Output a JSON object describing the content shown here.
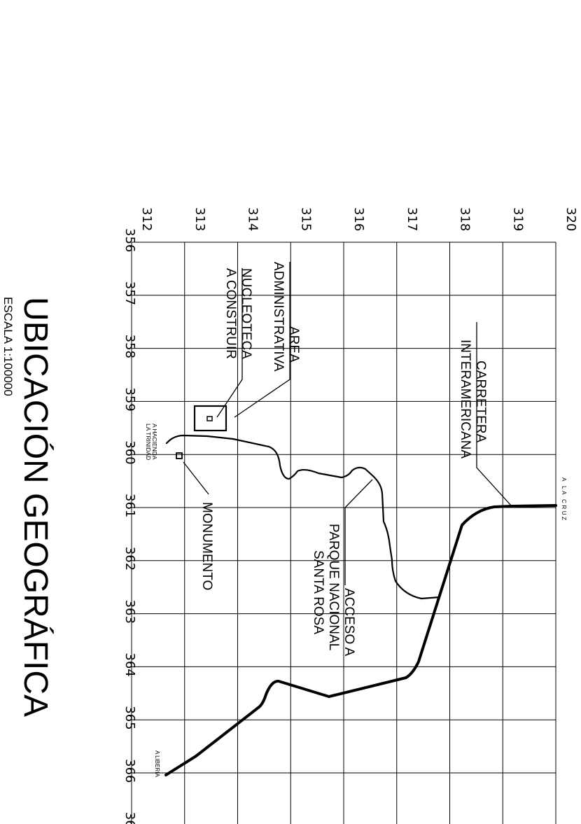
{
  "title": "UBICACIÓN GEOGRÁFICA",
  "scale": "ESCALA 1:100000",
  "grid": {
    "northing_labels": [
      "356",
      "357",
      "358",
      "359",
      "360",
      "361",
      "362",
      "363",
      "364",
      "365",
      "366",
      "36"
    ],
    "easting_labels": [
      "312",
      "313",
      "314",
      "315",
      "316",
      "317",
      "318",
      "319",
      "320"
    ]
  },
  "labels": {
    "carretera": [
      "CARRETERA",
      "INTERAMERICANA"
    ],
    "area_admin": [
      "AREA",
      "ADMINISTRATIVA"
    ],
    "nucleoteca": [
      "NUCLEOTECA",
      "A CONSTRUIR"
    ],
    "acceso": [
      "ACCESO A",
      "PARQUE NACIONAL",
      "SANTA ROSA"
    ],
    "monumento": "MONUMENTO",
    "hacienda": [
      "A HACIENDA",
      "LA TRINIDAD"
    ],
    "la_cruz": "A LA CRUZ",
    "liberia": "A LIBERIA"
  }
}
